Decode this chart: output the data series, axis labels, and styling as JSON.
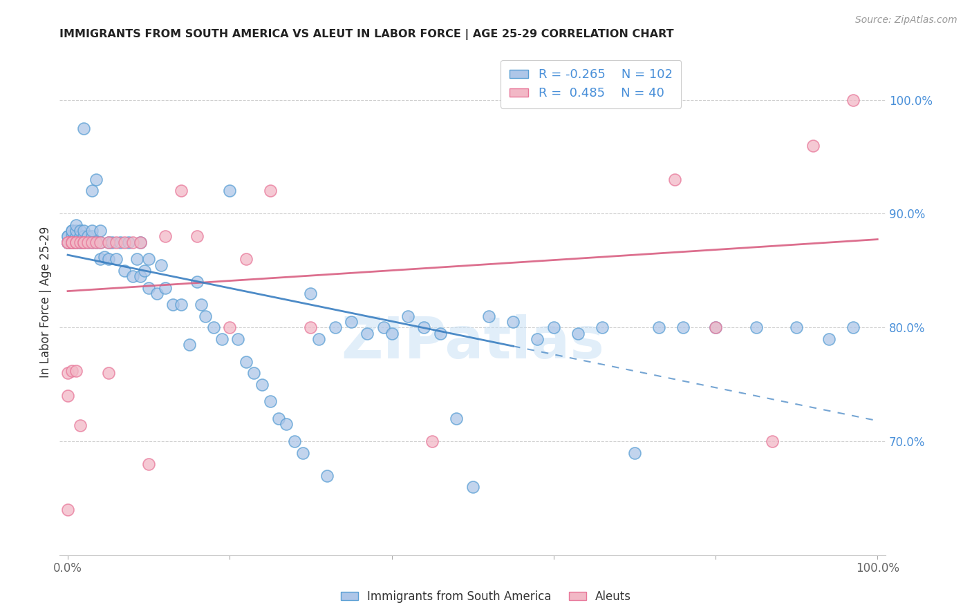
{
  "title": "IMMIGRANTS FROM SOUTH AMERICA VS ALEUT IN LABOR FORCE | AGE 25-29 CORRELATION CHART",
  "source": "Source: ZipAtlas.com",
  "ylabel": "In Labor Force | Age 25-29",
  "xlim": [
    -0.01,
    1.01
  ],
  "ylim": [
    0.6,
    1.045
  ],
  "x_ticks": [
    0.0,
    0.2,
    0.4,
    0.6,
    0.8,
    1.0
  ],
  "x_tick_labels": [
    "0.0%",
    "",
    "",
    "",
    "",
    "100.0%"
  ],
  "y_tick_labels_right": [
    "100.0%",
    "90.0%",
    "80.0%",
    "70.0%"
  ],
  "y_tick_vals_right": [
    1.0,
    0.9,
    0.8,
    0.7
  ],
  "blue_R": -0.265,
  "blue_N": 102,
  "pink_R": 0.485,
  "pink_N": 40,
  "blue_color": "#aec6e8",
  "pink_color": "#f2b8c6",
  "blue_edge_color": "#5a9fd4",
  "pink_edge_color": "#e8789a",
  "blue_line_color": "#3a7fc1",
  "pink_line_color": "#d95f82",
  "watermark": "ZIPatlas",
  "blue_points_x": [
    0.0,
    0.0,
    0.0,
    0.0,
    0.0,
    0.0,
    0.0,
    0.0,
    0.005,
    0.005,
    0.005,
    0.005,
    0.005,
    0.005,
    0.005,
    0.01,
    0.01,
    0.01,
    0.01,
    0.01,
    0.015,
    0.015,
    0.015,
    0.015,
    0.02,
    0.02,
    0.02,
    0.02,
    0.025,
    0.025,
    0.03,
    0.03,
    0.03,
    0.03,
    0.035,
    0.035,
    0.04,
    0.04,
    0.04,
    0.045,
    0.05,
    0.05,
    0.055,
    0.06,
    0.065,
    0.07,
    0.075,
    0.08,
    0.085,
    0.09,
    0.09,
    0.095,
    0.1,
    0.1,
    0.11,
    0.115,
    0.12,
    0.13,
    0.14,
    0.15,
    0.16,
    0.165,
    0.17,
    0.18,
    0.19,
    0.2,
    0.21,
    0.22,
    0.23,
    0.24,
    0.25,
    0.26,
    0.27,
    0.28,
    0.29,
    0.3,
    0.31,
    0.32,
    0.33,
    0.35,
    0.37,
    0.39,
    0.4,
    0.42,
    0.44,
    0.46,
    0.48,
    0.5,
    0.52,
    0.55,
    0.58,
    0.6,
    0.63,
    0.66,
    0.7,
    0.73,
    0.76,
    0.8,
    0.85,
    0.9,
    0.94,
    0.97
  ],
  "blue_points_y": [
    0.875,
    0.875,
    0.875,
    0.875,
    0.875,
    0.875,
    0.88,
    0.88,
    0.875,
    0.875,
    0.875,
    0.875,
    0.88,
    0.885,
    0.885,
    0.875,
    0.875,
    0.88,
    0.885,
    0.89,
    0.875,
    0.875,
    0.88,
    0.885,
    0.875,
    0.88,
    0.885,
    0.975,
    0.875,
    0.88,
    0.875,
    0.88,
    0.885,
    0.92,
    0.875,
    0.93,
    0.86,
    0.875,
    0.885,
    0.862,
    0.86,
    0.875,
    0.875,
    0.86,
    0.875,
    0.85,
    0.875,
    0.845,
    0.86,
    0.845,
    0.875,
    0.85,
    0.835,
    0.86,
    0.83,
    0.855,
    0.835,
    0.82,
    0.82,
    0.785,
    0.84,
    0.82,
    0.81,
    0.8,
    0.79,
    0.92,
    0.79,
    0.77,
    0.76,
    0.75,
    0.735,
    0.72,
    0.715,
    0.7,
    0.69,
    0.83,
    0.79,
    0.67,
    0.8,
    0.805,
    0.795,
    0.8,
    0.795,
    0.81,
    0.8,
    0.795,
    0.72,
    0.66,
    0.81,
    0.805,
    0.79,
    0.8,
    0.795,
    0.8,
    0.69,
    0.8,
    0.8,
    0.8,
    0.8,
    0.8,
    0.79,
    0.8
  ],
  "pink_points_x": [
    0.0,
    0.0,
    0.0,
    0.0,
    0.0,
    0.005,
    0.005,
    0.005,
    0.005,
    0.01,
    0.01,
    0.01,
    0.015,
    0.015,
    0.02,
    0.02,
    0.025,
    0.03,
    0.035,
    0.04,
    0.05,
    0.05,
    0.06,
    0.07,
    0.08,
    0.09,
    0.1,
    0.12,
    0.14,
    0.16,
    0.2,
    0.22,
    0.25,
    0.3,
    0.45,
    0.75,
    0.8,
    0.87,
    0.92,
    0.97
  ],
  "pink_points_y": [
    0.875,
    0.875,
    0.76,
    0.74,
    0.64,
    0.875,
    0.875,
    0.875,
    0.762,
    0.875,
    0.875,
    0.762,
    0.875,
    0.714,
    0.875,
    0.875,
    0.875,
    0.875,
    0.875,
    0.875,
    0.875,
    0.76,
    0.875,
    0.875,
    0.875,
    0.875,
    0.68,
    0.88,
    0.92,
    0.88,
    0.8,
    0.86,
    0.92,
    0.8,
    0.7,
    0.93,
    0.8,
    0.7,
    0.96,
    1.0
  ]
}
